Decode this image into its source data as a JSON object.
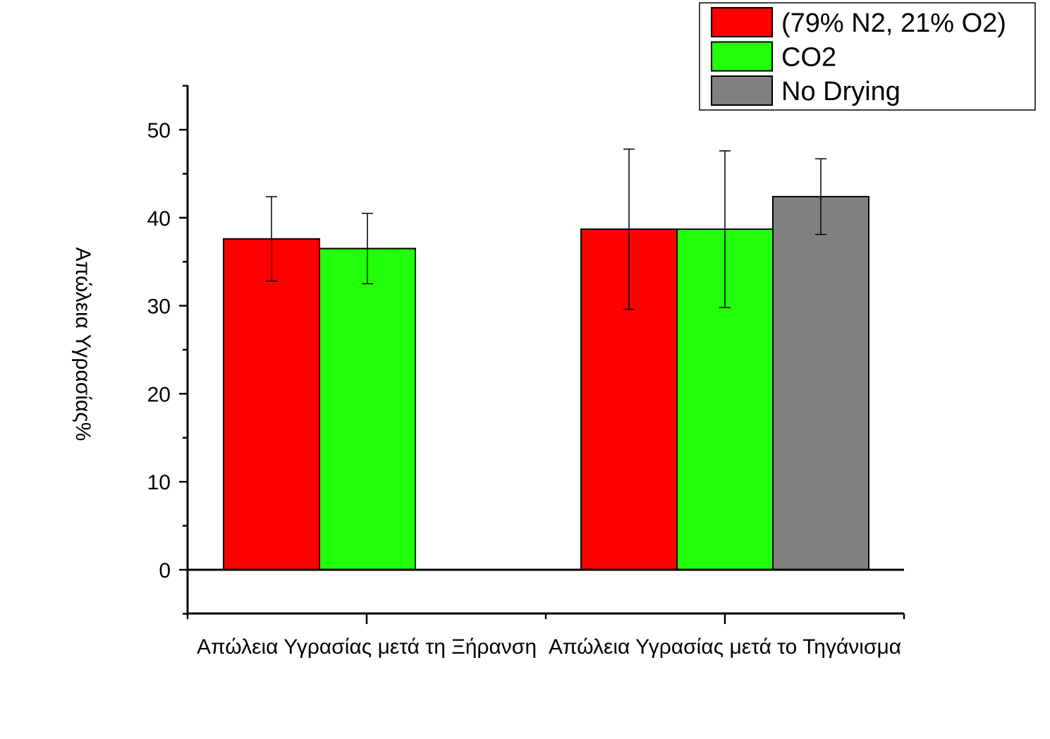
{
  "chart_data": {
    "type": "bar",
    "title": "",
    "xlabel": "",
    "ylabel": "Απώλεια Υγρασίας%",
    "ylim": [
      -5,
      55
    ],
    "yticks": [
      0,
      10,
      20,
      30,
      40,
      50
    ],
    "grid": false,
    "legend_position": "top-right",
    "categories": [
      "Απώλεια Υγρασίας μετά τη Ξήρανση",
      "Απώλεια Υγρασίας μετά το Τηγάνισμα"
    ],
    "series": [
      {
        "name": "(79% N2, 21% O2)",
        "color": "#ff0000",
        "values": [
          37.6,
          38.7
        ],
        "errors": [
          4.8,
          9.1
        ]
      },
      {
        "name": "CO2",
        "color": "#22ff0a",
        "values": [
          36.5,
          38.7
        ],
        "errors": [
          4.0,
          8.9
        ]
      },
      {
        "name": "No Drying",
        "color": "#808080",
        "values": [
          null,
          42.4
        ],
        "errors": [
          null,
          4.3
        ]
      }
    ]
  }
}
